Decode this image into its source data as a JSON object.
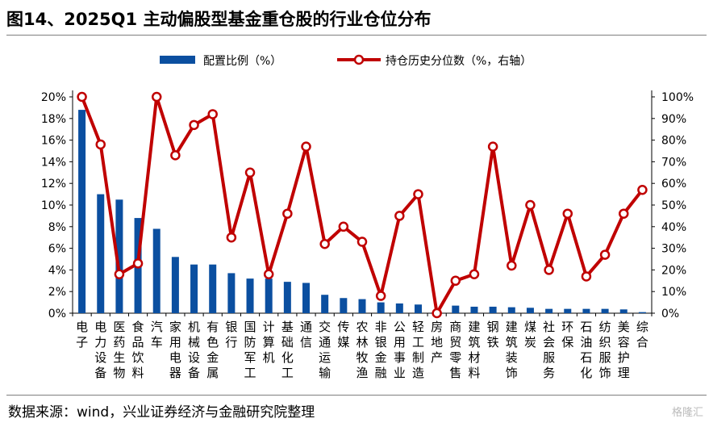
{
  "title": "图14、2025Q1 主动偏股型基金重仓股的行业仓位分布",
  "source": "数据来源：wind，兴业证券经济与金融研究院整理",
  "watermark": "格隆汇",
  "chart_data": {
    "type": "bar+line",
    "categories": [
      "电子",
      "电力设备",
      "医药生物",
      "食品饮料",
      "汽车",
      "家用电器",
      "机械设备",
      "有色金属",
      "银行",
      "国防军工",
      "计算机",
      "基础化工",
      "通信",
      "交通运输",
      "传媒",
      "农林牧渔",
      "非银金融",
      "公用事业",
      "轻工制造",
      "房地产",
      "商贸零售",
      "建筑材料",
      "钢铁",
      "建筑装饰",
      "煤炭",
      "社会服务",
      "环保",
      "石油石化",
      "纺织服饰",
      "美容护理",
      "综合"
    ],
    "series": [
      {
        "name": "配置比例（%）",
        "axis": "left",
        "type": "bar",
        "color": "#0b4fa0",
        "values": [
          18.8,
          11.0,
          10.5,
          8.8,
          7.8,
          5.2,
          4.5,
          4.5,
          3.7,
          3.2,
          3.2,
          2.9,
          2.8,
          1.7,
          1.4,
          1.3,
          1.0,
          0.9,
          0.8,
          0.0,
          0.7,
          0.6,
          0.6,
          0.55,
          0.5,
          0.4,
          0.4,
          0.4,
          0.4,
          0.35,
          0.1
        ]
      },
      {
        "name": "持仓历史分位数（%，右轴）",
        "axis": "right",
        "type": "line",
        "color": "#c00000",
        "values": [
          100,
          78,
          18,
          23,
          100,
          73,
          87,
          92,
          35,
          65,
          18,
          46,
          77,
          32,
          40,
          33,
          8,
          45,
          55,
          0,
          15,
          18,
          77,
          22,
          50,
          20,
          46,
          17,
          27,
          46,
          57
        ]
      }
    ],
    "left_axis": {
      "min": 0,
      "max": 20,
      "step": 2,
      "tick_labels": [
        "0%",
        "2%",
        "4%",
        "6%",
        "8%",
        "10%",
        "12%",
        "14%",
        "16%",
        "18%",
        "20%"
      ]
    },
    "right_axis": {
      "min": 0,
      "max": 100,
      "step": 10,
      "tick_labels": [
        "0%",
        "10%",
        "20%",
        "30%",
        "40%",
        "50%",
        "60%",
        "70%",
        "80%",
        "90%",
        "100%"
      ]
    },
    "legend_position": "top"
  }
}
